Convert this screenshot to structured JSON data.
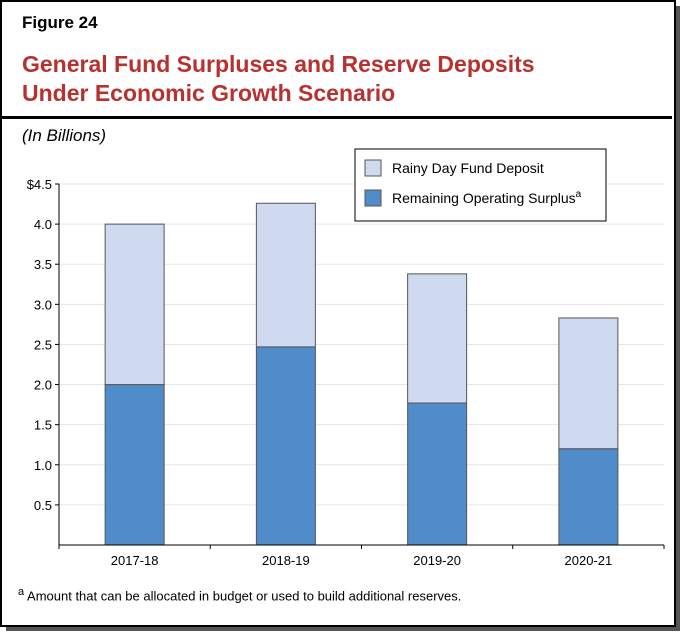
{
  "figure_label": "Figure 24",
  "title_line1": "General Fund Surpluses and Reserve Deposits",
  "title_line2": "Under Economic Growth Scenario",
  "chart_data": {
    "type": "bar",
    "stacked": true,
    "title": "General Fund Surpluses and Reserve Deposits Under Economic Growth Scenario",
    "ylabel": "(In Billions)",
    "ylim": [
      0,
      4.5
    ],
    "yticks": [
      "0.5",
      "1.0",
      "1.5",
      "2.0",
      "2.5",
      "3.0",
      "3.5",
      "4.0",
      "$4.5"
    ],
    "grid": true,
    "legend_position": "top-right",
    "categories": [
      "2017-18",
      "2018-19",
      "2019-20",
      "2020-21"
    ],
    "series": [
      {
        "name": "Remaining Operating Surplus",
        "superscript": "a",
        "color": "#4f8cc9",
        "values": [
          2.0,
          2.47,
          1.77,
          1.2
        ]
      },
      {
        "name": "Rainy Day Fund Deposit",
        "color": "#cfd9f0",
        "values": [
          2.0,
          1.79,
          1.61,
          1.63
        ]
      }
    ]
  },
  "footnote": {
    "marker": "a",
    "text": "Amount that can be allocated in budget or used to build additional reserves."
  }
}
